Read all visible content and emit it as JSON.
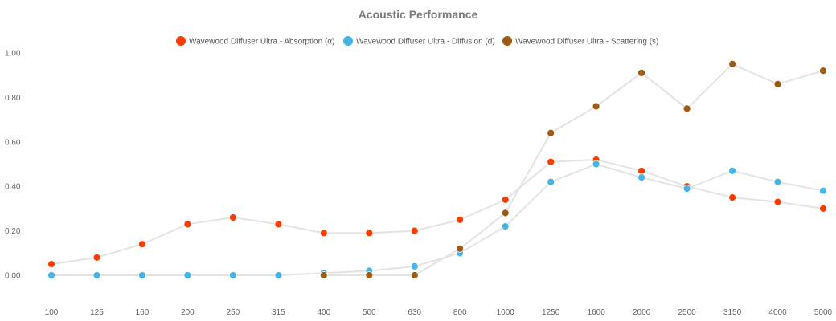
{
  "chart_data": {
    "type": "line",
    "title": "Acoustic Performance",
    "xlabel": "",
    "ylabel": "",
    "ylim": [
      0,
      1
    ],
    "yticks": [
      "0.00",
      "0.20",
      "0.40",
      "0.60",
      "0.80",
      "1.00"
    ],
    "ytick_values": [
      0,
      0.2,
      0.4,
      0.6,
      0.8,
      1.0
    ],
    "categories": [
      "100",
      "125",
      "160",
      "200",
      "250",
      "315",
      "400",
      "500",
      "630",
      "800",
      "1000",
      "1250",
      "1600",
      "2000",
      "2500",
      "3150",
      "4000",
      "5000"
    ],
    "grid": false,
    "legend_position": "top-center",
    "line_color": "#e3e3e3",
    "series": [
      {
        "name": "Wavewood Diffuser Ultra - Absorption (α)",
        "color": "#ff3c00",
        "values": [
          0.05,
          0.08,
          0.14,
          0.23,
          0.26,
          0.23,
          0.19,
          0.19,
          0.2,
          0.25,
          0.34,
          0.51,
          0.52,
          0.47,
          0.4,
          0.35,
          0.33,
          0.3
        ]
      },
      {
        "name": "Wavewood Diffuser Ultra - Diffusion (d)",
        "color": "#45b4e6",
        "values": [
          0.0,
          0.0,
          0.0,
          0.0,
          0.0,
          0.0,
          0.01,
          0.02,
          0.04,
          0.1,
          0.22,
          0.42,
          0.5,
          0.44,
          0.39,
          0.47,
          0.42,
          0.38
        ]
      },
      {
        "name": "Wavewood Diffuser Ultra - Scattering (s)",
        "color": "#9c5a14",
        "values": [
          null,
          null,
          null,
          null,
          null,
          null,
          0.0,
          0.0,
          0.0,
          0.12,
          0.28,
          0.64,
          0.76,
          0.91,
          0.75,
          0.95,
          0.86,
          0.92
        ]
      }
    ]
  }
}
